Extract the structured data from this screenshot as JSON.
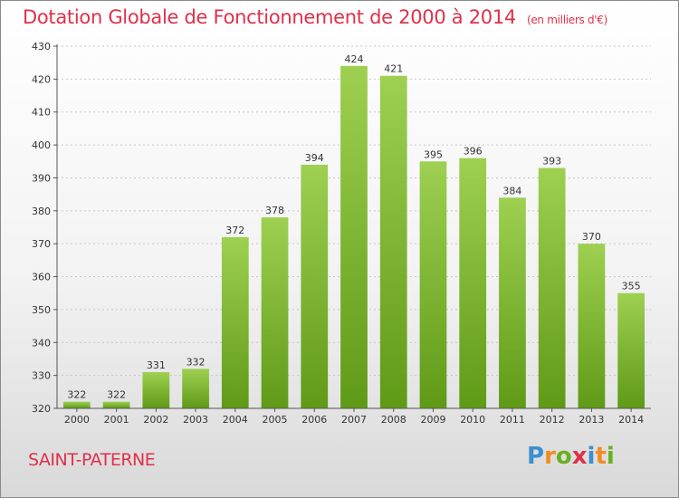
{
  "title": "Dotation Globale de Fonctionnement de 2000 à 2014",
  "subtitle": "(en milliers d'€)",
  "commune": "SAINT-PATERNE",
  "logo": {
    "letters": [
      "P",
      "r",
      "o",
      "x",
      "i",
      "t",
      "i"
    ],
    "colors": [
      "#3c8fd0",
      "#f28c1e",
      "#6ab023",
      "#e0304a",
      "#3c8fd0",
      "#f28c1e",
      "#6ab023"
    ]
  },
  "chart_data": {
    "type": "bar",
    "categories": [
      "2000",
      "2001",
      "2002",
      "2003",
      "2004",
      "2005",
      "2006",
      "2007",
      "2008",
      "2009",
      "2010",
      "2011",
      "2012",
      "2013",
      "2014"
    ],
    "values": [
      322,
      322,
      331,
      332,
      372,
      378,
      394,
      424,
      421,
      395,
      396,
      384,
      393,
      370,
      355
    ],
    "title": "Dotation Globale de Fonctionnement de 2000 à 2014",
    "ylim": [
      320,
      430
    ],
    "yticks": [
      320,
      330,
      340,
      350,
      360,
      370,
      380,
      390,
      400,
      410,
      420,
      430
    ],
    "grid": true,
    "data_labels": true,
    "bar_color": "#7ebf3a"
  }
}
